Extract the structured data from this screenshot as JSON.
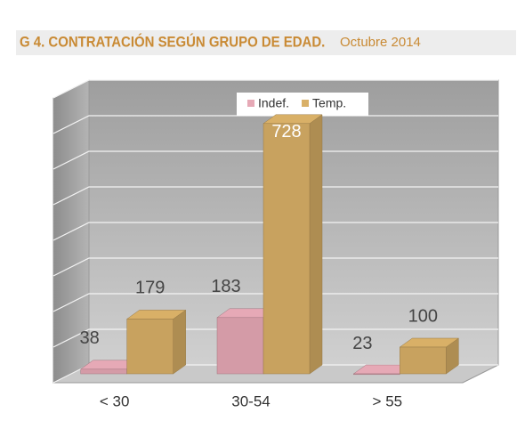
{
  "chart_data": {
    "type": "bar3d",
    "title": "G 4. CONTRATACIÓN  SEGÚN GRUPO DE EDAD.",
    "subtitle": "Octubre 2014",
    "categories": [
      "< 30",
      "30-54",
      "> 55"
    ],
    "series": [
      {
        "name": "Indef.",
        "color": "#e6a9b6",
        "values": [
          38,
          183,
          23
        ]
      },
      {
        "name": "Temp.",
        "color": "#d9b067",
        "values": [
          179,
          728,
          100
        ]
      }
    ],
    "ylim": [
      0,
      800
    ],
    "yticks": [
      0,
      100,
      200,
      300,
      400,
      500,
      600,
      700,
      800
    ],
    "grid": true,
    "legend": "top"
  }
}
